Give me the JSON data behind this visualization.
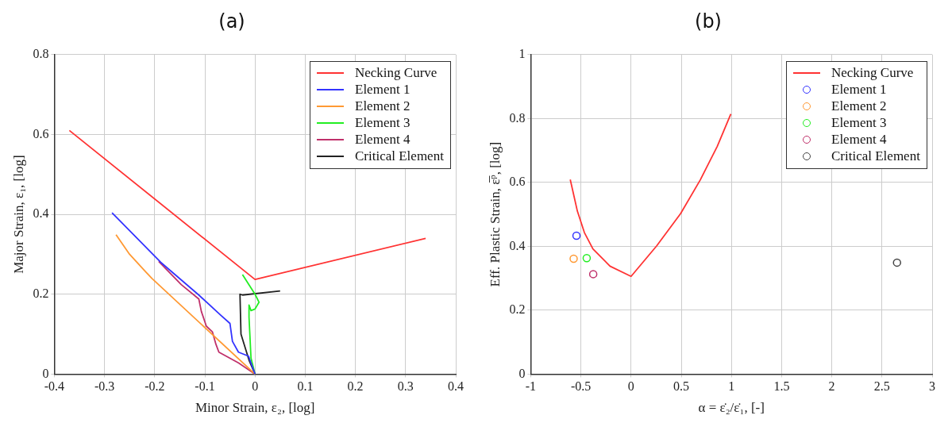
{
  "chart_data": [
    {
      "type": "line",
      "title": "(a)",
      "xlabel": "Minor Strain, ε₂, [log]",
      "ylabel": "Major Strain, ε₁, [log]",
      "xlim": [
        -0.4,
        0.4
      ],
      "xticks": [
        -0.4,
        -0.3,
        -0.2,
        -0.1,
        0,
        0.1,
        0.2,
        0.3,
        0.4
      ],
      "ylim": [
        0,
        0.8
      ],
      "yticks": [
        0,
        0.2,
        0.4,
        0.6,
        0.8
      ],
      "grid": true,
      "legend": "top right",
      "series": [
        {
          "name": "Necking Curve",
          "color": "#ff3333",
          "x": [
            -0.37,
            0,
            0.34
          ],
          "values": [
            0.61,
            0.237,
            0.34
          ]
        },
        {
          "name": "Element 1",
          "color": "#3333ff",
          "x": [
            -0.285,
            -0.188,
            -0.112,
            -0.068,
            -0.05,
            -0.045,
            -0.033,
            -0.013,
            0
          ],
          "values": [
            0.404,
            0.28,
            0.198,
            0.147,
            0.127,
            0.082,
            0.055,
            0.045,
            0
          ]
        },
        {
          "name": "Element 2",
          "color": "#ff9933",
          "x": [
            -0.277,
            -0.25,
            -0.217,
            -0.205,
            0
          ],
          "values": [
            0.349,
            0.3,
            0.255,
            0.239,
            0
          ]
        },
        {
          "name": "Element 3",
          "color": "#22ee22",
          "x": [
            -0.025,
            0,
            0.008,
            0,
            -0.008,
            -0.012,
            -0.012,
            -0.008,
            0
          ],
          "values": [
            0.249,
            0.2,
            0.18,
            0.163,
            0.159,
            0.173,
            0.143,
            0.04,
            0
          ]
        },
        {
          "name": "Element 4",
          "color": "#c0306a",
          "x": [
            -0.192,
            -0.147,
            -0.112,
            -0.107,
            -0.097,
            -0.085,
            -0.078,
            -0.072,
            -0.033,
            0
          ],
          "values": [
            0.282,
            0.224,
            0.188,
            0.157,
            0.12,
            0.106,
            0.075,
            0.055,
            0.028,
            0
          ]
        },
        {
          "name": "Critical Element",
          "color": "#222222",
          "x": [
            0,
            -0.012,
            -0.028,
            -0.03,
            -0.025,
            0.05
          ],
          "values": [
            0,
            0.035,
            0.1,
            0.2,
            0.198,
            0.208
          ]
        }
      ]
    },
    {
      "type": "line",
      "title": "(b)",
      "xlabel": "α = ε̇₂/ε̇₁, [-]",
      "ylabel": "Eff. Plastic Strain, ε̅ᵖ, [log]",
      "xlim": [
        -1,
        3
      ],
      "xticks": [
        -1,
        -0.5,
        0,
        0.5,
        1,
        1.5,
        2,
        2.5,
        3
      ],
      "ylim": [
        0,
        1
      ],
      "yticks": [
        0,
        0.2,
        0.4,
        0.6,
        0.8,
        1
      ],
      "grid": true,
      "legend": "top right",
      "series": [
        {
          "name": "Necking Curve",
          "color": "#ff3333",
          "x": [
            -0.606,
            -0.535,
            -0.465,
            -0.38,
            -0.21,
            0,
            0.254,
            0.493,
            0.69,
            0.859,
            0.994
          ],
          "values": [
            0.609,
            0.51,
            0.443,
            0.392,
            0.338,
            0.306,
            0.401,
            0.502,
            0.608,
            0.713,
            0.814
          ]
        },
        {
          "name": "Element 1",
          "type": "scatter",
          "marker": "circle",
          "color": "#3333ff",
          "x": [
            -0.544
          ],
          "values": [
            0.433
          ]
        },
        {
          "name": "Element 2",
          "type": "scatter",
          "marker": "circle",
          "color": "#ff9933",
          "x": [
            -0.572
          ],
          "values": [
            0.361
          ]
        },
        {
          "name": "Element 3",
          "type": "scatter",
          "marker": "circle",
          "color": "#22ee22",
          "x": [
            -0.442
          ],
          "values": [
            0.363
          ]
        },
        {
          "name": "Element 4",
          "type": "scatter",
          "marker": "circle",
          "color": "#c0306a",
          "x": [
            -0.377
          ],
          "values": [
            0.313
          ]
        },
        {
          "name": "Critical Element",
          "type": "scatter",
          "marker": "circle",
          "color": "#444444",
          "x": [
            2.65
          ],
          "values": [
            0.349
          ]
        }
      ]
    }
  ]
}
